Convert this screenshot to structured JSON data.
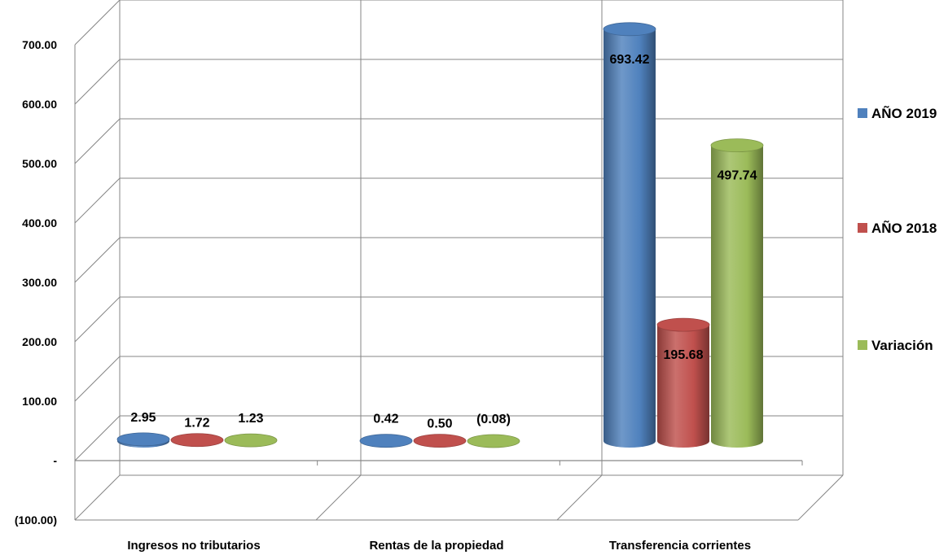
{
  "chart_data": {
    "type": "bar",
    "style": "3d-cylinder",
    "title": "",
    "xlabel": "",
    "ylabel": "",
    "categories": [
      "Ingresos no tributarios",
      "Rentas de la propiedad",
      "Transferencia corrientes"
    ],
    "series": [
      {
        "name": "AÑO 2019",
        "color": "#4f81bd",
        "values": [
          2.95,
          0.42,
          693.42
        ],
        "labels": [
          "2.95",
          "0.42",
          "693.42"
        ]
      },
      {
        "name": "AÑO 2018",
        "color": "#c0504d",
        "values": [
          1.72,
          0.5,
          195.68
        ],
        "labels": [
          "1.72",
          "0.50",
          "195.68"
        ]
      },
      {
        "name": "Variación",
        "color": "#9bbb59",
        "values": [
          1.23,
          -0.08,
          497.74
        ],
        "labels": [
          "1.23",
          "(0.08)",
          "497.74"
        ]
      }
    ],
    "ylim": [
      -100,
      700
    ],
    "yticks": [
      -100,
      0,
      100,
      200,
      300,
      400,
      500,
      600,
      700
    ],
    "ytick_labels": [
      "(100.00)",
      "-",
      "100.00",
      "200.00",
      "300.00",
      "400.00",
      "500.00",
      "600.00",
      "700.00"
    ],
    "grid": true,
    "legend_position": "right"
  }
}
